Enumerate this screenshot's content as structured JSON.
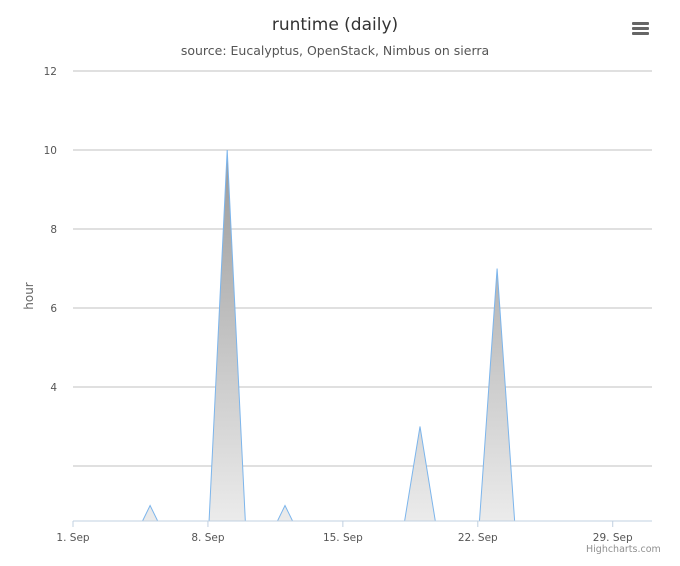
{
  "chart_data": {
    "type": "area",
    "title": "runtime (daily)",
    "subtitle": "source: Eucalyptus, OpenStack, Nimbus on sierra",
    "ylabel": "hour",
    "xlabel": "",
    "x_ticks": [
      "1. Sep",
      "8. Sep",
      "15. Sep",
      "22. Sep",
      "29. Sep"
    ],
    "y_ticks": [
      "4",
      "6",
      "8",
      "10",
      "12"
    ],
    "y_gridlines": [
      2,
      4,
      6,
      8,
      10,
      12
    ],
    "ylim": [
      0.6,
      12
    ],
    "xlim": [
      "2014-09-01",
      "2014-09-30"
    ],
    "grid": true,
    "colors": {
      "line": "#7cb5ec",
      "fill_top": "#9a9a9a",
      "fill_bottom": "#f4f4f4",
      "grid": "#c0c0c0"
    },
    "series": [
      {
        "values": [
          [
            "2014-09-01",
            0
          ],
          [
            "2014-09-02",
            0
          ],
          [
            "2014-09-03",
            0
          ],
          [
            "2014-09-04",
            0
          ],
          [
            "2014-09-05",
            1
          ],
          [
            "2014-09-06",
            0
          ],
          [
            "2014-09-07",
            0
          ],
          [
            "2014-09-08",
            0
          ],
          [
            "2014-09-09",
            10
          ],
          [
            "2014-09-10",
            0
          ],
          [
            "2014-09-11",
            0
          ],
          [
            "2014-09-12",
            1
          ],
          [
            "2014-09-13",
            0
          ],
          [
            "2014-09-14",
            0
          ],
          [
            "2014-09-15",
            0
          ],
          [
            "2014-09-16",
            0
          ],
          [
            "2014-09-17",
            0
          ],
          [
            "2014-09-18",
            0
          ],
          [
            "2014-09-19",
            3
          ],
          [
            "2014-09-20",
            0
          ],
          [
            "2014-09-21",
            0
          ],
          [
            "2014-09-22",
            0
          ],
          [
            "2014-09-23",
            7
          ],
          [
            "2014-09-24",
            0
          ],
          [
            "2014-09-25",
            0
          ],
          [
            "2014-09-26",
            0
          ],
          [
            "2014-09-27",
            0
          ],
          [
            "2014-09-28",
            0
          ],
          [
            "2014-09-29",
            0
          ],
          [
            "2014-09-30",
            0
          ]
        ]
      }
    ]
  },
  "menu": {
    "icon": "hamburger-menu-icon"
  },
  "credits": "Highcharts.com"
}
